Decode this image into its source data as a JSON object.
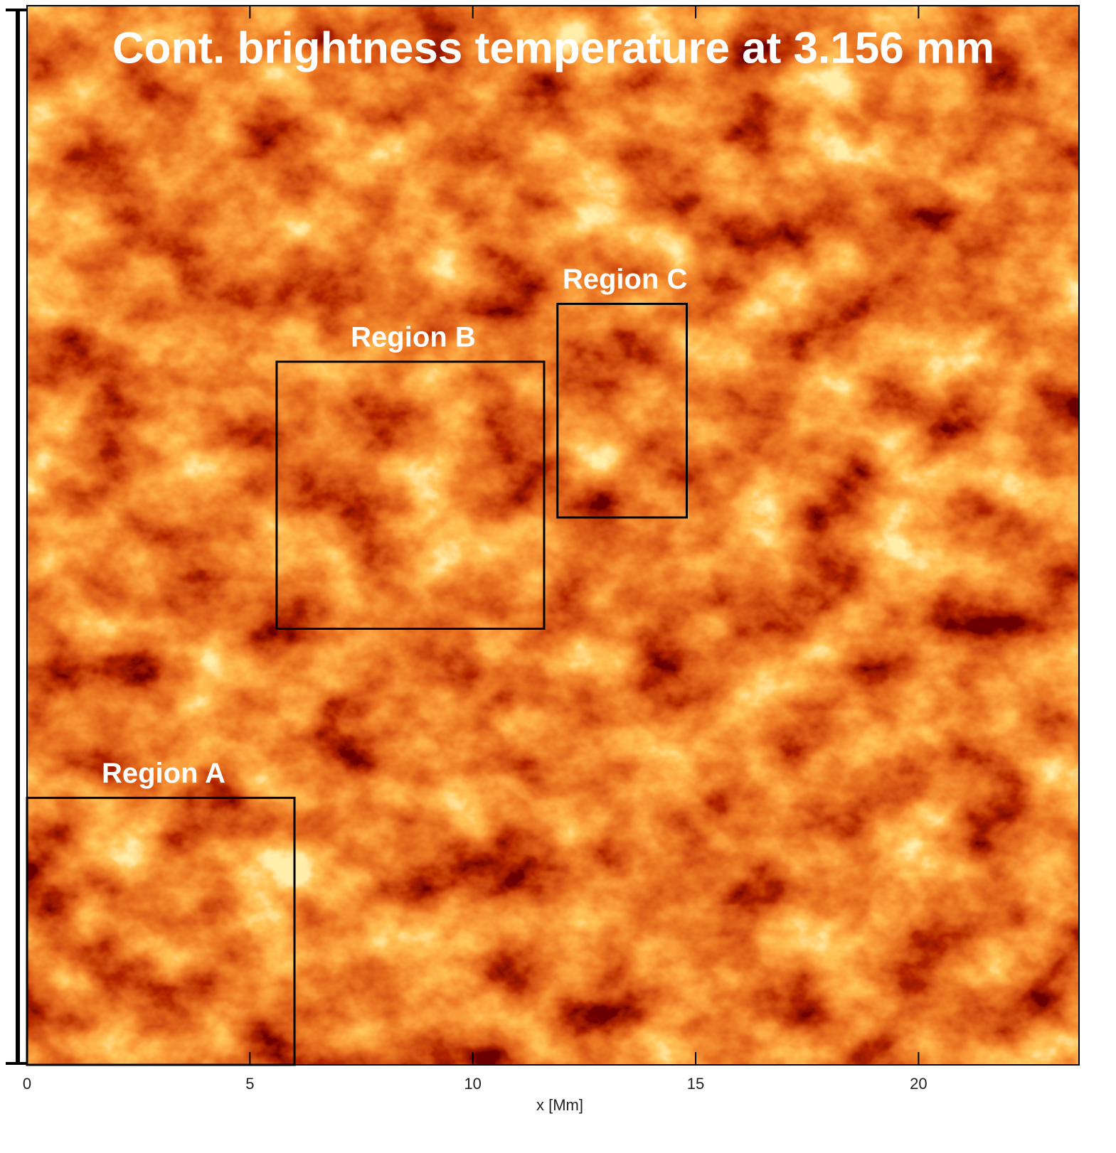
{
  "chart_data": {
    "type": "image",
    "title": "Cont. brightness temperature at 3.156 mm",
    "x_label": "x [Mm]",
    "xlim": [
      0,
      23.6
    ],
    "xticks": [
      0,
      5,
      10,
      15,
      20
    ],
    "ylim": [
      0,
      23.8
    ],
    "regions": [
      {
        "name": "Region A",
        "x": [
          0,
          6
        ],
        "y": [
          0,
          6
        ]
      },
      {
        "name": "Region B",
        "x": [
          5.6,
          11.6
        ],
        "y": [
          9.8,
          15.8
        ]
      },
      {
        "name": "Region C",
        "x": [
          11.9,
          14.8
        ],
        "y": [
          12.3,
          17.1
        ]
      }
    ]
  }
}
